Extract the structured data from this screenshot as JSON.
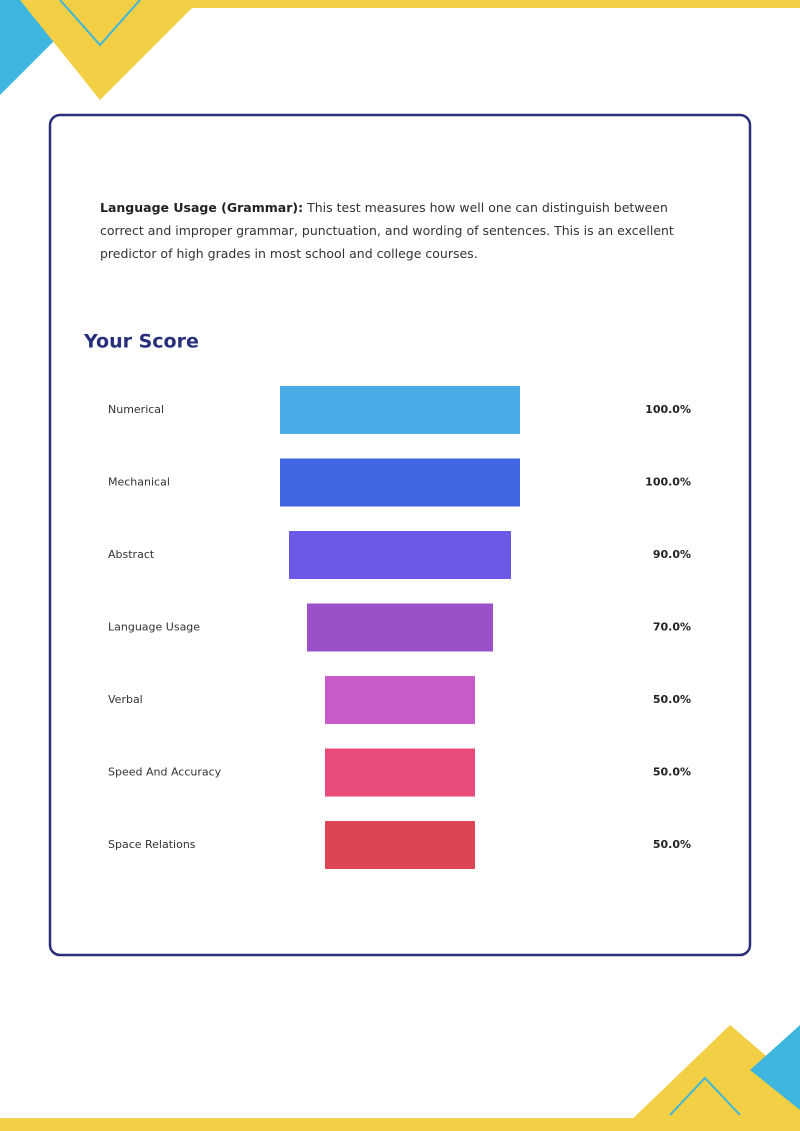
{
  "description": {
    "term": "Language Usage (Grammar):",
    "text": "This test measures how well one can distinguish between correct and improper grammar, punctuation, and wording of sentences. This is an excellent predictor of high grades in most school and college courses."
  },
  "chart_data": {
    "type": "funnel",
    "title": "Your Score",
    "categories": [
      "Numerical",
      "Mechanical",
      "Abstract",
      "Language Usage",
      "Verbal",
      "Speed And Accuracy",
      "Space Relations"
    ],
    "values": [
      100,
      100,
      90,
      70,
      50,
      50,
      50
    ],
    "value_labels": [
      "100.0%",
      "100.0%",
      "90.0%",
      "70.0%",
      "50.0%",
      "50.0%",
      "50.0%"
    ],
    "colors": [
      "#4aabe8",
      "#3f66e0",
      "#6a5ae6",
      "#9b4fc8",
      "#c85bc8",
      "#e84a7a",
      "#dd4455"
    ]
  }
}
